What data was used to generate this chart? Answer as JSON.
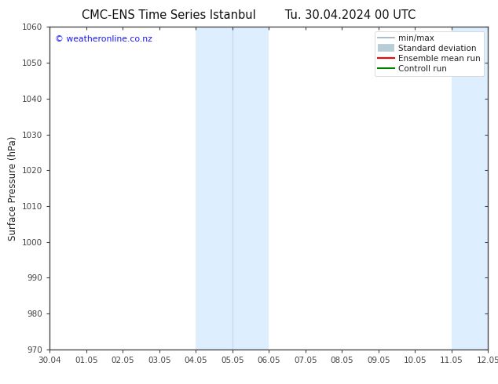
{
  "title": "CMC-ENS Time Series Istanbul",
  "title2": "Tu. 30.04.2024 00 UTC",
  "ylabel": "Surface Pressure (hPa)",
  "background_color": "#ffffff",
  "plot_bg_color": "#ffffff",
  "watermark": "© weatheronline.co.nz",
  "watermark_color": "#1a1aff",
  "ymin": 970,
  "ymax": 1060,
  "yticks": [
    970,
    980,
    990,
    1000,
    1010,
    1020,
    1030,
    1040,
    1050,
    1060
  ],
  "xtick_labels": [
    "30.04",
    "01.05",
    "02.05",
    "03.05",
    "04.05",
    "05.05",
    "06.05",
    "07.05",
    "08.05",
    "09.05",
    "10.05",
    "11.05",
    "12.05"
  ],
  "shaded_regions": [
    {
      "xstart": 4,
      "xend": 5,
      "color": "#ddeeff"
    },
    {
      "xstart": 5,
      "xend": 6,
      "color": "#ddeeff"
    },
    {
      "xstart": 11,
      "xend": 12,
      "color": "#ddeeff"
    }
  ],
  "shade_divider_color": "#c0d8ee",
  "shade_dividers": [
    5
  ],
  "legend_entries": [
    {
      "label": "min/max",
      "color": "#9ab0c0",
      "lw": 1.2,
      "style": "-"
    },
    {
      "label": "Standard deviation",
      "color": "#b8cdd8",
      "lw": 7,
      "style": "-"
    },
    {
      "label": "Ensemble mean run",
      "color": "#ff0000",
      "lw": 1.5,
      "style": "-"
    },
    {
      "label": "Controll run",
      "color": "#008000",
      "lw": 1.5,
      "style": "-"
    }
  ],
  "tick_color": "#444444",
  "spine_color": "#444444",
  "title_fontsize": 10.5,
  "axis_label_fontsize": 8.5,
  "tick_fontsize": 7.5,
  "legend_fontsize": 7.5
}
